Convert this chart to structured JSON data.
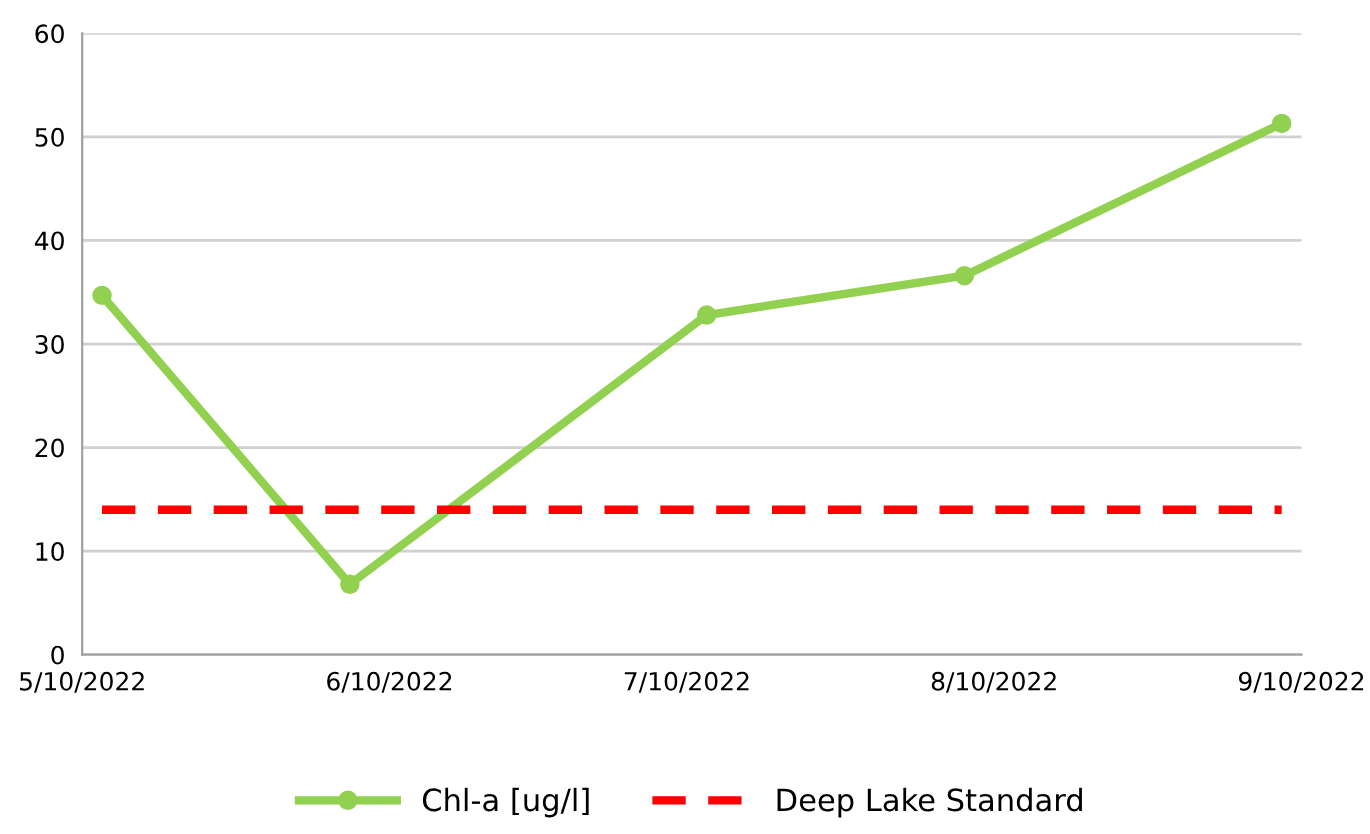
{
  "chart_data": {
    "type": "line",
    "x": [
      "2022-05-12",
      "2022-06-06",
      "2022-07-12",
      "2022-08-07",
      "2022-09-08"
    ],
    "series": [
      {
        "name": "Chl-a [ug/l]",
        "color": "#92d050",
        "values": [
          34.7,
          6.8,
          32.8,
          36.6,
          51.3
        ],
        "marker": "circle",
        "line_style": "solid"
      },
      {
        "name": "Deep Lake Standard",
        "color": "#ff0000",
        "values": [
          14,
          14,
          14,
          14,
          14
        ],
        "marker": "none",
        "line_style": "dashed"
      }
    ],
    "xlim": [
      "2022-05-10",
      "2022-09-10"
    ],
    "xticks": [
      {
        "value": "2022-05-10",
        "label": "5/10/2022"
      },
      {
        "value": "2022-06-10",
        "label": "6/10/2022"
      },
      {
        "value": "2022-07-10",
        "label": "7/10/2022"
      },
      {
        "value": "2022-08-10",
        "label": "8/10/2022"
      },
      {
        "value": "2022-09-10",
        "label": "9/10/2022"
      }
    ],
    "ylim": [
      0,
      60
    ],
    "yticks": [
      0,
      10,
      20,
      30,
      40,
      50,
      60
    ],
    "grid": "y",
    "legend": "bottom"
  }
}
